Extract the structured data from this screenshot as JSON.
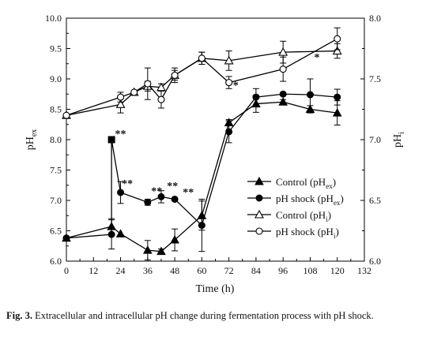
{
  "chart_data": {
    "type": "line",
    "xlabel": "Time (h)",
    "ylabel_left": {
      "base": "pH",
      "sub": "ex"
    },
    "ylabel_right": {
      "base": "pH",
      "sub": "i"
    },
    "xlim": [
      0,
      132
    ],
    "x_ticks": [
      0,
      12,
      24,
      36,
      48,
      60,
      72,
      84,
      96,
      108,
      120,
      132
    ],
    "ylim_left": [
      6.0,
      10.0
    ],
    "y_ticks_left": [
      "6.0",
      "6.5",
      "7.0",
      "7.5",
      "8.0",
      "8.5",
      "9.0",
      "9.5",
      "10.0"
    ],
    "ylim_right": [
      6.0,
      8.0
    ],
    "y_ticks_right": [
      "6.0",
      "6.5",
      "7.0",
      "7.5",
      "8.0"
    ],
    "legend_position": "center-right",
    "series": [
      {
        "name": "Control (pHex)",
        "legend": {
          "base": "Control (pH",
          "sub": "ex",
          "close": ")"
        },
        "axis": "left",
        "marker": "filled-triangle",
        "x": [
          0,
          20,
          24,
          36,
          42,
          48,
          60,
          72,
          84,
          96,
          108,
          120
        ],
        "y": [
          6.38,
          6.57,
          6.45,
          6.18,
          6.16,
          6.35,
          6.75,
          8.28,
          8.59,
          8.62,
          8.5,
          8.44
        ],
        "err": [
          0.0,
          0.13,
          0.0,
          0.16,
          0.04,
          0.18,
          0.24,
          0.05,
          0.14,
          0.04,
          0.06,
          0.2
        ]
      },
      {
        "name": "pH shock (pHex)",
        "legend": {
          "base": "pH shock (pH",
          "sub": "ex",
          "close": ")"
        },
        "axis": "left",
        "marker": "filled-circle",
        "x": [
          0,
          20,
          20,
          24,
          36,
          42,
          48,
          60,
          72,
          84,
          96,
          108,
          120
        ],
        "y": [
          6.38,
          6.44,
          8.0,
          7.13,
          6.97,
          7.06,
          7.02,
          6.59,
          8.13,
          8.7,
          8.75,
          8.74,
          8.7
        ],
        "err": [
          0.0,
          0.24,
          0.0,
          0.18,
          0.05,
          0.1,
          0.0,
          0.43,
          0.18,
          0.14,
          0.0,
          0.26,
          0.13
        ],
        "marker_override": {
          "2": "filled-square"
        }
      },
      {
        "name": "Control (pHi)",
        "legend": {
          "base": "Control (pH",
          "sub": "i",
          "close": ")"
        },
        "axis": "right",
        "marker": "open-triangle",
        "x": [
          0,
          24,
          30,
          36,
          42,
          48,
          60,
          72,
          96,
          120
        ],
        "y": [
          7.2,
          7.29,
          7.39,
          7.44,
          7.43,
          7.53,
          7.67,
          7.65,
          7.72,
          7.73
        ],
        "err": [
          0.0,
          0.07,
          0.0,
          0.04,
          0.03,
          0.04,
          0.05,
          0.08,
          0.09,
          0.06
        ]
      },
      {
        "name": "pH shock (pHi)",
        "legend": {
          "base": "pH shock (pH",
          "sub": "i",
          "close": ")"
        },
        "axis": "right",
        "marker": "open-circle",
        "x": [
          0,
          24,
          30,
          36,
          42,
          48,
          60,
          72,
          96,
          120
        ],
        "y": [
          7.2,
          7.35,
          7.39,
          7.46,
          7.33,
          7.53,
          7.67,
          7.47,
          7.58,
          7.83
        ],
        "err": [
          0.0,
          0.04,
          0.0,
          0.13,
          0.07,
          0.06,
          0.05,
          0.05,
          0.1,
          0.09
        ]
      }
    ],
    "annotations": [
      {
        "text": "**",
        "x": 24,
        "y": 8.04,
        "axis": "left"
      },
      {
        "text": "**",
        "x": 27,
        "y": 7.22,
        "axis": "left"
      },
      {
        "text": "**",
        "x": 40,
        "y": 7.1,
        "axis": "left"
      },
      {
        "text": "**",
        "x": 47,
        "y": 7.18,
        "axis": "left"
      },
      {
        "text": "**",
        "x": 54,
        "y": 7.08,
        "axis": "left"
      },
      {
        "text": "*",
        "x": 75,
        "y": 7.42,
        "axis": "right"
      },
      {
        "text": "*",
        "x": 111,
        "y": 7.65,
        "axis": "right"
      }
    ]
  },
  "caption": {
    "label": "Fig. 3.",
    "text": "Extracellular and intracellular pH change during fermentation process with pH shock."
  }
}
